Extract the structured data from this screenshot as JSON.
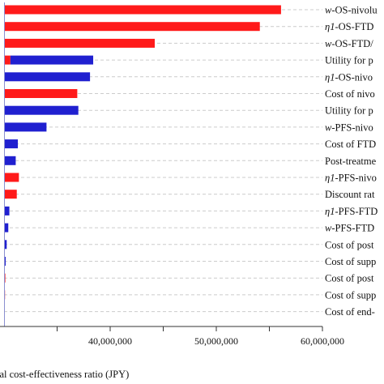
{
  "chart_data": {
    "type": "bar",
    "orientation": "horizontal",
    "title": "",
    "xlabel": "tal cost-effectiveness ratio (JPY)",
    "ylabel": "",
    "base_value": 30000000,
    "xlim": [
      30000000,
      60000000
    ],
    "x_ticks": [
      40000000,
      50000000,
      60000000
    ],
    "x_tick_labels": [
      "40,000,000",
      "50,000,000",
      "60,000,000"
    ],
    "grid": "dashed horizontal row lines",
    "legend": "none",
    "series_colors": {
      "red": "#ff1a1a",
      "blue": "#2020d0"
    },
    "parameters": [
      {
        "label": "w-OS-nivolu",
        "segments": [
          {
            "color": "red",
            "from": 30000000,
            "to": 56100000
          }
        ]
      },
      {
        "label": "η1-OS-FTD",
        "segments": [
          {
            "color": "red",
            "from": 30000000,
            "to": 54100000
          }
        ]
      },
      {
        "label": "w-OS-FTD/",
        "segments": [
          {
            "color": "red",
            "from": 30000000,
            "to": 44200000
          }
        ]
      },
      {
        "label": "Utility for p",
        "segments": [
          {
            "color": "red",
            "from": 30000000,
            "to": 30600000
          },
          {
            "color": "blue",
            "from": 30600000,
            "to": 38400000
          }
        ]
      },
      {
        "label": "η1-OS-nivo",
        "segments": [
          {
            "color": "blue",
            "from": 30000000,
            "to": 38100000
          }
        ]
      },
      {
        "label": "Cost of nivo",
        "segments": [
          {
            "color": "red",
            "from": 30000000,
            "to": 36900000
          }
        ]
      },
      {
        "label": "Utility for p",
        "segments": [
          {
            "color": "blue",
            "from": 30000000,
            "to": 37000000
          }
        ]
      },
      {
        "label": "w-PFS-nivo",
        "segments": [
          {
            "color": "blue",
            "from": 30000000,
            "to": 34000000
          }
        ]
      },
      {
        "label": "Cost of FTD",
        "segments": [
          {
            "color": "blue",
            "from": 30000000,
            "to": 31300000
          }
        ]
      },
      {
        "label": "Post-treatme",
        "segments": [
          {
            "color": "blue",
            "from": 30000000,
            "to": 31100000
          }
        ]
      },
      {
        "label": "η1-PFS-nivo",
        "segments": [
          {
            "color": "red",
            "from": 30000000,
            "to": 31400000
          }
        ]
      },
      {
        "label": "Discount rat",
        "segments": [
          {
            "color": "red",
            "from": 30000000,
            "to": 31200000
          }
        ]
      },
      {
        "label": "η1-PFS-FTD",
        "segments": [
          {
            "color": "blue",
            "from": 30000000,
            "to": 30500000
          }
        ]
      },
      {
        "label": "w-PFS-FTD",
        "segments": [
          {
            "color": "blue",
            "from": 30000000,
            "to": 30400000
          }
        ]
      },
      {
        "label": "Cost of post",
        "segments": [
          {
            "color": "blue",
            "from": 30000000,
            "to": 30250000
          }
        ]
      },
      {
        "label": "Cost of supp",
        "segments": [
          {
            "color": "blue",
            "from": 30000000,
            "to": 30150000
          }
        ]
      },
      {
        "label": "Cost of post",
        "segments": [
          {
            "color": "red",
            "from": 30000000,
            "to": 30120000
          }
        ]
      },
      {
        "label": "Cost of supp",
        "segments": [
          {
            "color": "red",
            "from": 30000000,
            "to": 30080000
          }
        ]
      },
      {
        "label": "Cost of end-",
        "segments": []
      }
    ]
  }
}
